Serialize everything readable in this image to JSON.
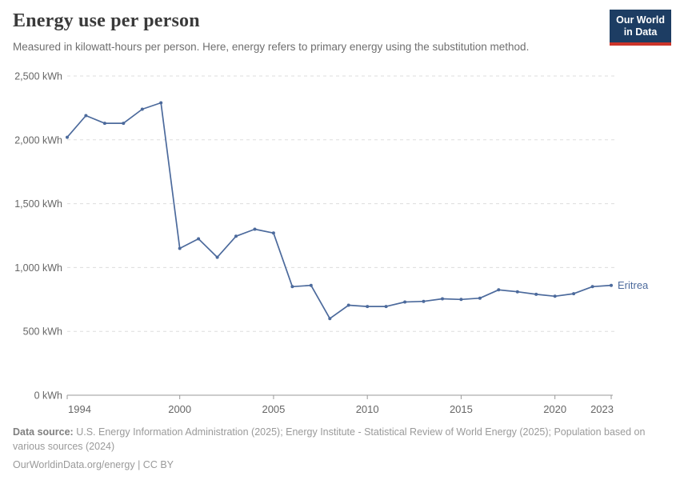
{
  "header": {
    "title": "Energy use per person",
    "subtitle": "Measured in kilowatt-hours per person. Here, energy refers to primary energy using the substitution method.",
    "logo": {
      "line1": "Our World",
      "line2": "in Data",
      "bg_color": "#1d3d63",
      "accent_color": "#cc342a"
    }
  },
  "chart_data": {
    "type": "line",
    "title": "Energy use per person",
    "unit": "kWh",
    "x": [
      1994,
      1995,
      1996,
      1997,
      1998,
      1999,
      2000,
      2001,
      2002,
      2003,
      2004,
      2005,
      2006,
      2007,
      2008,
      2009,
      2010,
      2011,
      2012,
      2013,
      2014,
      2015,
      2016,
      2017,
      2018,
      2019,
      2020,
      2021,
      2022,
      2023
    ],
    "series": [
      {
        "name": "Eritrea",
        "color": "#4c6a9c",
        "values": [
          2020,
          2190,
          2130,
          2130,
          2240,
          2290,
          1150,
          1225,
          1080,
          1245,
          1300,
          1270,
          850,
          860,
          600,
          705,
          695,
          695,
          730,
          735,
          755,
          750,
          760,
          825,
          810,
          790,
          775,
          795,
          850,
          860
        ]
      }
    ],
    "x_ticks": [
      1994,
      2000,
      2005,
      2010,
      2015,
      2020,
      2023
    ],
    "y_ticks": [
      {
        "value": 0,
        "label": "0 kWh"
      },
      {
        "value": 500,
        "label": "500 kWh"
      },
      {
        "value": 1000,
        "label": "1,000 kWh"
      },
      {
        "value": 1500,
        "label": "1,500 kWh"
      },
      {
        "value": 2000,
        "label": "2,000 kWh"
      },
      {
        "value": 2500,
        "label": "2,500 kWh"
      }
    ],
    "ylim": [
      0,
      2500
    ],
    "xlim": [
      1994,
      2023
    ],
    "grid": "horizontal-dashed",
    "legend_position": "end-of-line-label",
    "end_label": "Eritrea",
    "colors": {
      "line": "#4c6a9c",
      "grid": "#dddddd",
      "axis": "#999999",
      "tick_label": "#666666"
    }
  },
  "footer": {
    "source_label": "Data source:",
    "source_text": " U.S. Energy Information Administration (2025); Energy Institute - Statistical Review of World Energy (2025); Population based on various sources (2024)",
    "citation": "OurWorldinData.org/energy | CC BY"
  }
}
